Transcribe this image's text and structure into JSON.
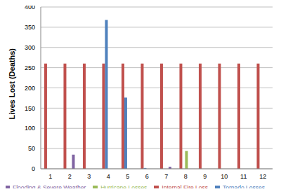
{
  "chart_data": {
    "type": "bar",
    "y_label": "Lives Lost (Deaths)",
    "categories": [
      "1",
      "2",
      "3",
      "4",
      "5",
      "6",
      "7",
      "8",
      "9",
      "10",
      "11",
      "12"
    ],
    "series": [
      {
        "name": "Internal Fire Loss",
        "color": "#c0504d",
        "values": [
          260,
          260,
          260,
          260,
          260,
          260,
          260,
          260,
          260,
          260,
          260,
          260
        ]
      },
      {
        "name": "Tornado Losses",
        "color": "#4f81bd",
        "values": [
          0,
          0,
          0,
          368,
          176,
          2,
          0,
          0,
          0,
          0,
          0,
          0
        ]
      },
      {
        "name": "Hurricane Losses",
        "color": "#9bbb59",
        "values": [
          0,
          0,
          0,
          0,
          0,
          0,
          0,
          44,
          0,
          0,
          0,
          0
        ]
      },
      {
        "name": "Flooding & Severe Weather",
        "color": "#8064a2",
        "values": [
          0,
          35,
          0,
          0,
          0,
          0,
          5,
          0,
          0,
          0,
          0,
          0
        ]
      }
    ],
    "ylim": [
      0,
      400
    ],
    "yticks": [
      0,
      50,
      100,
      150,
      200,
      250,
      300,
      350,
      400
    ],
    "grid": true,
    "legend": "bottom"
  }
}
